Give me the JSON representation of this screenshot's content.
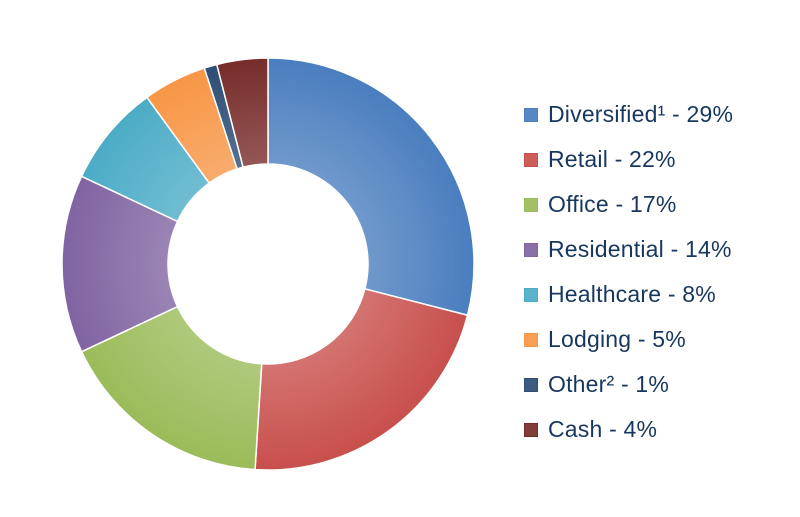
{
  "chart_data": {
    "type": "pie",
    "variant": "donut",
    "title": "",
    "legend_position": "right",
    "series": [
      {
        "name": "",
        "slices": [
          {
            "label": "Diversified¹ - 29%",
            "category": "Diversified¹",
            "value": 29,
            "color": "#4a7ebf"
          },
          {
            "label": "Retail - 22%",
            "category": "Retail",
            "value": 22,
            "color": "#c84f4c"
          },
          {
            "label": "Office - 17%",
            "category": "Office",
            "value": 17,
            "color": "#9bbb59"
          },
          {
            "label": "Residential - 14%",
            "category": "Residential",
            "value": 14,
            "color": "#8064a2"
          },
          {
            "label": "Healthcare - 8%",
            "category": "Healthcare",
            "value": 8,
            "color": "#4bacc6"
          },
          {
            "label": "Lodging - 5%",
            "category": "Lodging",
            "value": 5,
            "color": "#f79646"
          },
          {
            "label": "Other² - 1%",
            "category": "Other²",
            "value": 1,
            "color": "#2c4d75"
          },
          {
            "label": "Cash - 4%",
            "category": "Cash",
            "value": 4,
            "color": "#772c2a"
          }
        ]
      }
    ]
  }
}
